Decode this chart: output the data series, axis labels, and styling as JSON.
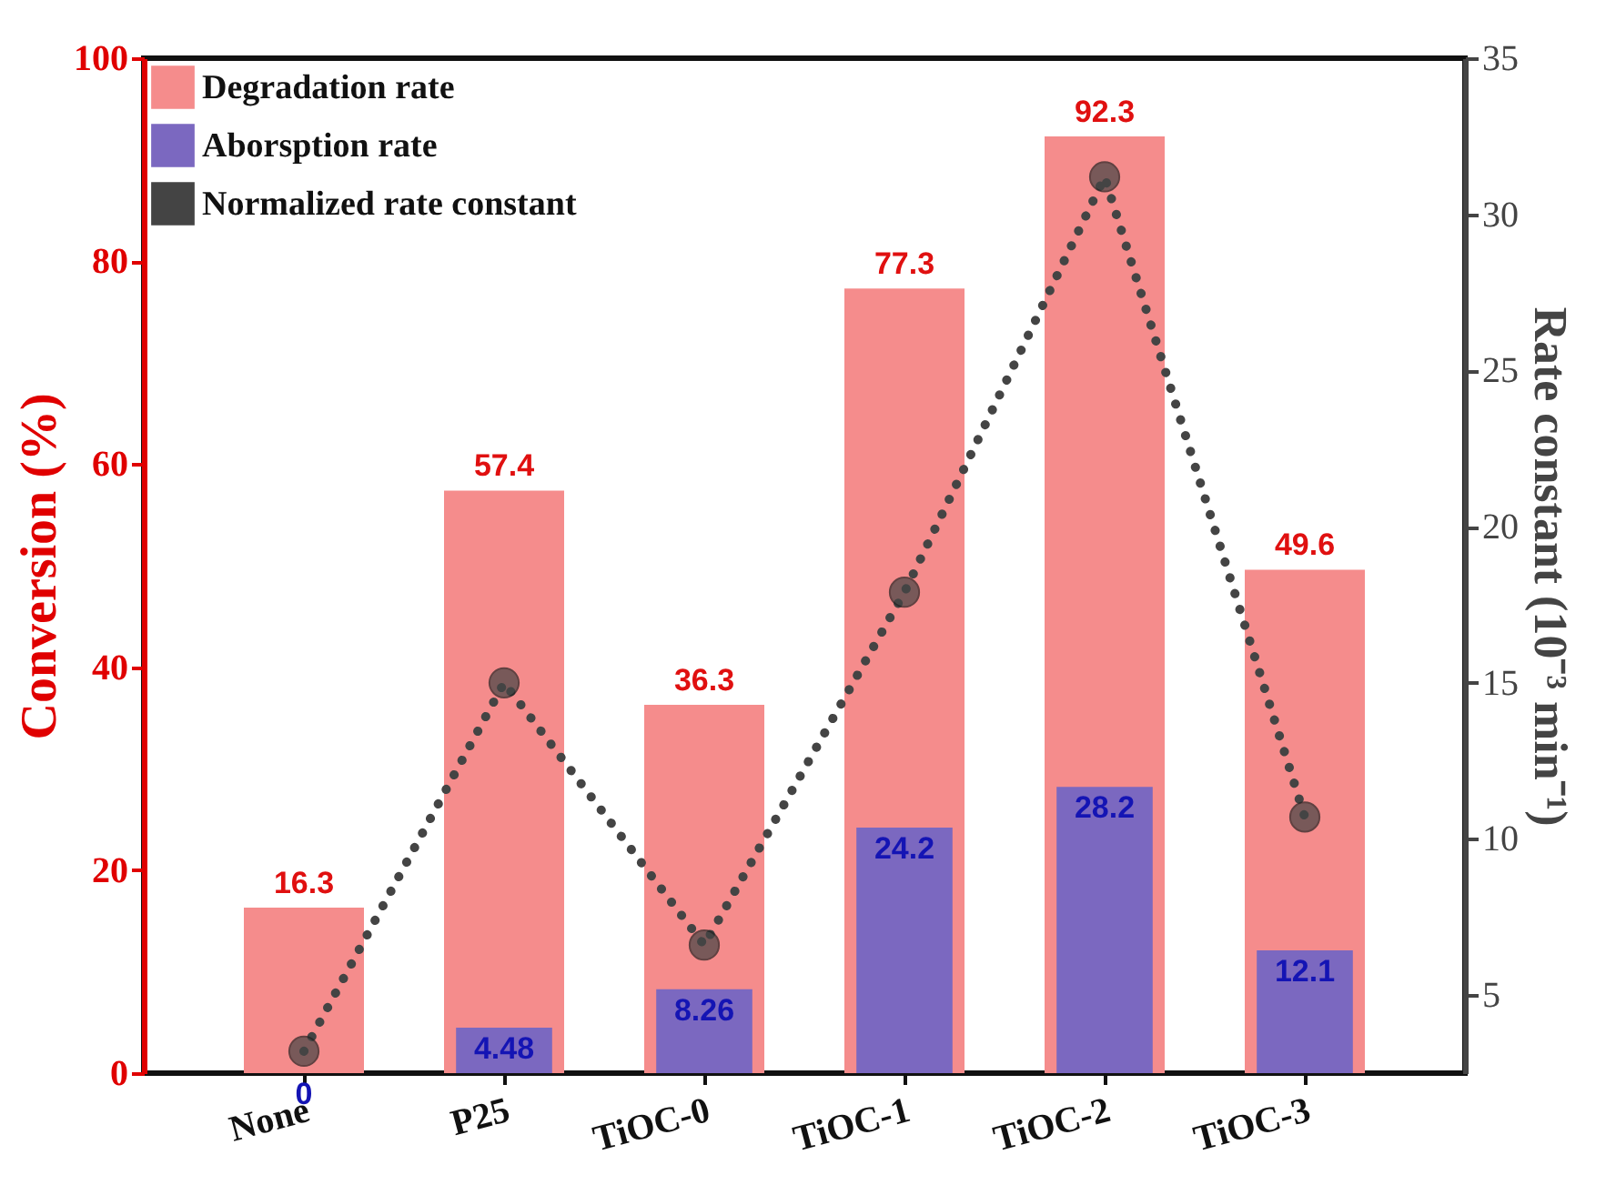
{
  "chart_data": {
    "type": "bar",
    "categories": [
      "None",
      "P25",
      "TiOC-0",
      "TiOC-1",
      "TiOC-2",
      "TiOC-3"
    ],
    "ylabel": "Conversion (%)",
    "y2label": "Rate constant (10⁻³ min⁻¹)",
    "ylim": [
      0,
      100
    ],
    "yticks": [
      0,
      20,
      40,
      60,
      80,
      100
    ],
    "y2lim": [
      2.5,
      35
    ],
    "y2ticks": [
      5,
      10,
      15,
      20,
      25,
      30,
      35
    ],
    "legend": "top left",
    "series": [
      {
        "name": "Degradation rate",
        "color": "#f58c8c",
        "values": [
          16.3,
          57.4,
          36.3,
          77.3,
          92.3,
          49.6
        ],
        "value_labels": [
          "16.3",
          "57.4",
          "36.3",
          "77.3",
          "92.3",
          "49.6"
        ]
      },
      {
        "name": "Aborsption rate",
        "color": "#7b68c0",
        "values": [
          0,
          4.48,
          8.26,
          24.2,
          28.2,
          12.1
        ],
        "value_labels": [
          "0",
          "4.48",
          "8.26",
          "24.2",
          "28.2",
          "12.1"
        ]
      },
      {
        "name": "Normalized rate constant",
        "type": "line",
        "axis": "y2",
        "color": "#444444",
        "marker": "circle",
        "line_style": "dotted",
        "values": [
          3.2,
          15.0,
          6.6,
          17.9,
          31.2,
          10.7
        ]
      }
    ]
  }
}
